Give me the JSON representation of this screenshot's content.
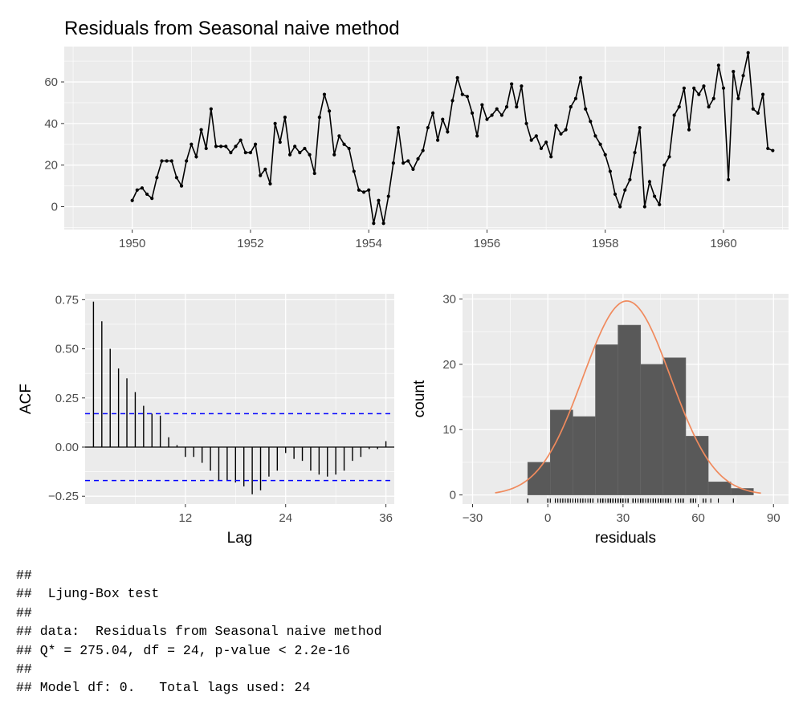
{
  "chart_data": [
    {
      "type": "line",
      "title": "Residuals from Seasonal naive method",
      "x_start": 1950,
      "x_step": 0.0833333,
      "y": [
        3,
        8,
        9,
        6,
        4,
        14,
        22,
        22,
        22,
        14,
        10,
        22,
        30,
        24,
        37,
        28,
        47,
        29,
        29,
        29,
        26,
        29,
        32,
        26,
        26,
        30,
        15,
        18,
        11,
        40,
        31,
        43,
        25,
        29,
        26,
        28,
        25,
        16,
        43,
        54,
        46,
        25,
        34,
        30,
        28,
        17,
        8,
        7,
        8,
        -8,
        3,
        -8,
        5,
        21,
        38,
        21,
        22,
        18,
        23,
        27,
        38,
        45,
        32,
        42,
        36,
        51,
        62,
        54,
        53,
        45,
        34,
        49,
        42,
        44,
        47,
        44,
        48,
        59,
        48,
        58,
        40,
        32,
        34,
        28,
        31,
        24,
        39,
        35,
        37,
        48,
        52,
        62,
        47,
        41,
        34,
        30,
        25,
        17,
        6,
        0,
        8,
        13,
        26,
        38,
        0,
        12,
        5,
        1,
        20,
        24,
        44,
        48,
        57,
        37,
        57,
        54,
        58,
        48,
        52,
        68,
        57,
        13,
        65,
        52,
        63,
        74,
        47,
        45,
        54,
        28,
        27
      ],
      "xlim": [
        1948.85,
        1961.1
      ],
      "ylim": [
        -11,
        77
      ],
      "x_ticks": [
        1950,
        1952,
        1954,
        1956,
        1958,
        1960
      ],
      "y_ticks": [
        0,
        20,
        40,
        60
      ],
      "xlabel": "",
      "ylabel": ""
    },
    {
      "type": "bar",
      "xlabel": "Lag",
      "ylabel": "ACF",
      "lags": [
        1,
        2,
        3,
        4,
        5,
        6,
        7,
        8,
        9,
        10,
        11,
        12,
        13,
        14,
        15,
        16,
        17,
        18,
        19,
        20,
        21,
        22,
        23,
        24,
        25,
        26,
        27,
        28,
        29,
        30,
        31,
        32,
        33,
        34,
        35,
        36
      ],
      "values": [
        0.74,
        0.64,
        0.5,
        0.4,
        0.35,
        0.28,
        0.21,
        0.17,
        0.16,
        0.05,
        0.01,
        -0.05,
        -0.05,
        -0.08,
        -0.12,
        -0.17,
        -0.17,
        -0.18,
        -0.2,
        -0.24,
        -0.22,
        -0.15,
        -0.12,
        -0.03,
        -0.06,
        -0.07,
        -0.12,
        -0.14,
        -0.15,
        -0.14,
        -0.12,
        -0.07,
        -0.05,
        -0.01,
        -0.01,
        0.03
      ],
      "confidence_bound": 0.17,
      "xlim": [
        0,
        37
      ],
      "ylim": [
        -0.29,
        0.78
      ],
      "x_ticks": [
        12,
        24,
        36
      ],
      "y_ticks": [
        -0.25,
        0.0,
        0.25,
        0.5,
        0.75
      ],
      "y_tick_labels": [
        "−0.25",
        "0.00",
        "0.25",
        "0.50",
        "0.75"
      ]
    },
    {
      "type": "bar",
      "xlabel": "residuals",
      "ylabel": "count",
      "bins": [
        {
          "x0": -8,
          "x1": 1,
          "count": 5
        },
        {
          "x0": 1,
          "x1": 10,
          "count": 13
        },
        {
          "x0": 10,
          "x1": 19,
          "count": 12
        },
        {
          "x0": 19,
          "x1": 28,
          "count": 23
        },
        {
          "x0": 28,
          "x1": 37,
          "count": 26
        },
        {
          "x0": 37,
          "x1": 46,
          "count": 20
        },
        {
          "x0": 46,
          "x1": 55,
          "count": 21
        },
        {
          "x0": 55,
          "x1": 64,
          "count": 9
        },
        {
          "x0": 64,
          "x1": 73,
          "count": 2
        },
        {
          "x0": 73,
          "x1": 82,
          "count": 1
        }
      ],
      "normal_curve": {
        "mean": 31.5,
        "sd": 17.5,
        "peak": 29.7,
        "from": -21,
        "to": 85
      },
      "xlim": [
        -34,
        96
      ],
      "ylim": [
        -1.4,
        30.8
      ],
      "x_ticks": [
        -30,
        0,
        30,
        60,
        90
      ],
      "x_tick_labels": [
        "−30",
        "0",
        "30",
        "60",
        "90"
      ],
      "y_ticks": [
        0,
        10,
        20,
        30
      ]
    }
  ],
  "console": {
    "lines": [
      "##",
      "##  Ljung-Box test",
      "##",
      "## data:  Residuals from Seasonal naive method",
      "## Q* = 275.04, df = 24, p-value < 2.2e-16",
      "##",
      "## Model df: 0.   Total lags used: 24"
    ]
  },
  "colors": {
    "panel": "#ebebeb",
    "grid": "#ffffff",
    "line": "#000000",
    "bar": "#595959",
    "curve": "#f08a5d",
    "bound": "#0000ff",
    "tick_text": "#4d4d4d"
  }
}
